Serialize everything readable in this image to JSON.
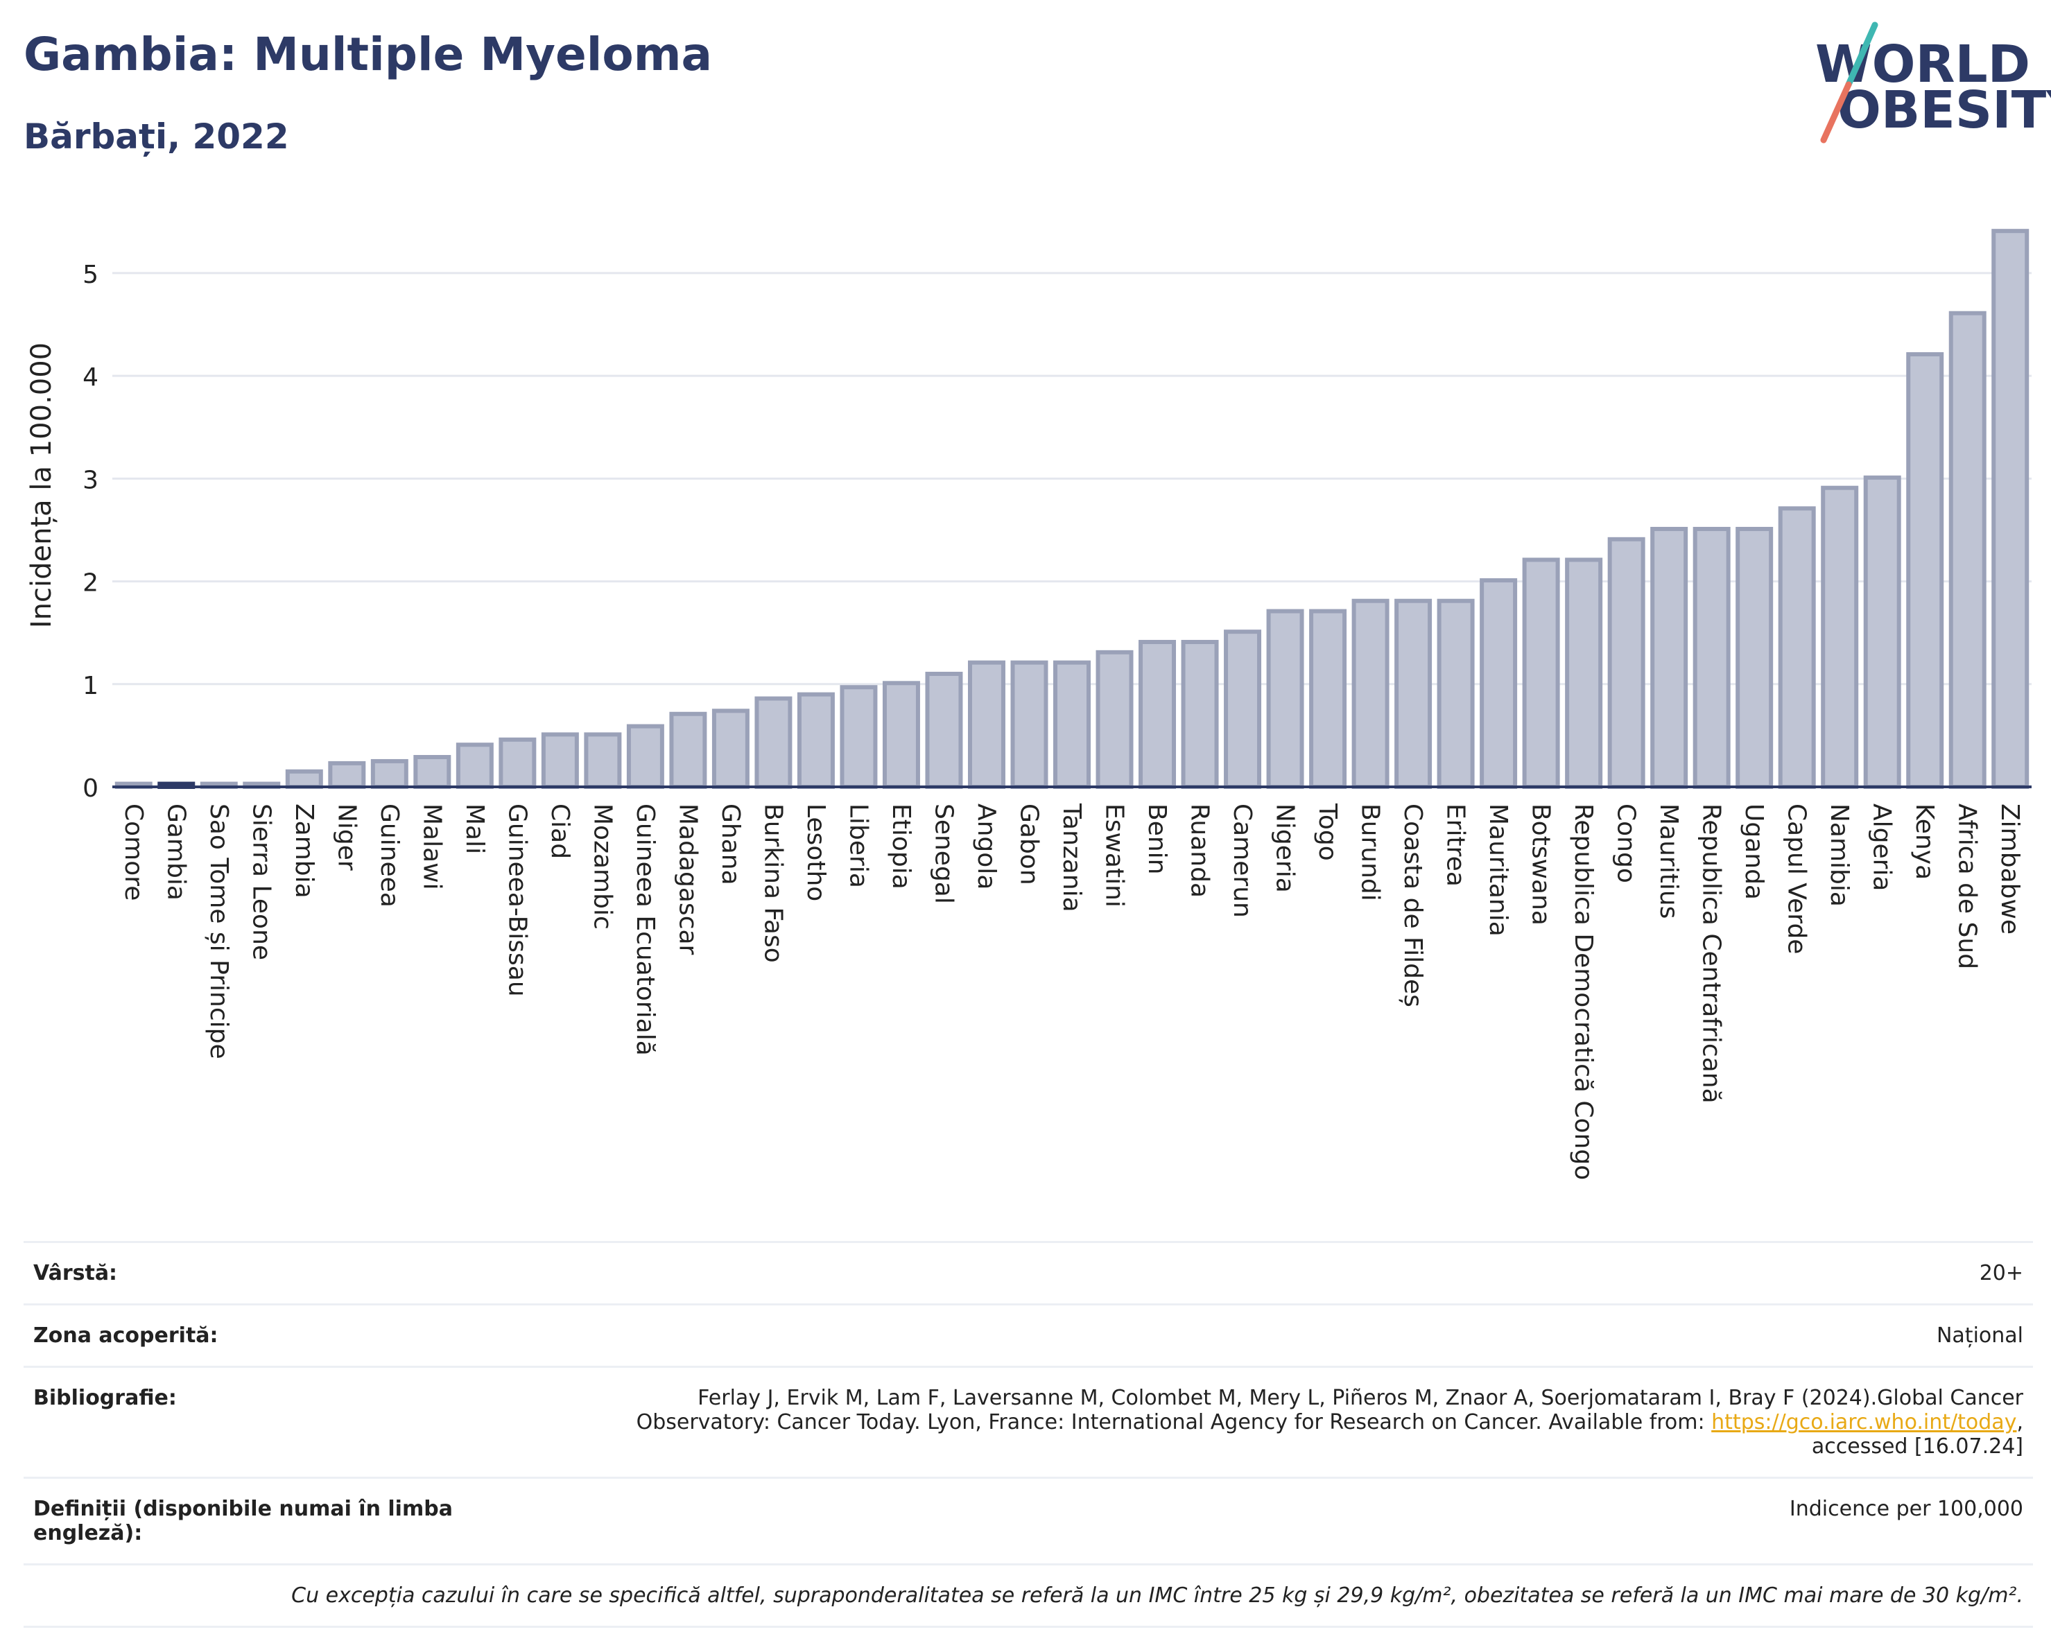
{
  "header": {
    "title": "Gambia: Multiple Myeloma",
    "subtitle": "Bărbați, 2022"
  },
  "logo": {
    "line1": "WORLD",
    "line2": "OBESITY",
    "accent_teal": "#3fb7b2",
    "accent_coral": "#e8735f"
  },
  "colors": {
    "bar": "#bfc4d4",
    "bar_border": "#9aa1b8",
    "highlight": "#2d3a66",
    "axis": "#2d3a66",
    "grid": "#e4e7ee"
  },
  "chart_data": {
    "type": "bar",
    "ylabel": "Incidența la 100.000",
    "ylim": [
      0,
      5.6
    ],
    "yticks": [
      0,
      1,
      2,
      3,
      4,
      5
    ],
    "highlight": "Gambia",
    "categories": [
      "Comore",
      "Gambia",
      "Sao Tome și Principe",
      "Sierra Leone",
      "Zambia",
      "Niger",
      "Guineea",
      "Malawi",
      "Mali",
      "Guineea-Bissau",
      "Ciad",
      "Mozambic",
      "Guineea Ecuatorială",
      "Madagascar",
      "Ghana",
      "Burkina Faso",
      "Lesotho",
      "Liberia",
      "Etiopia",
      "Senegal",
      "Angola",
      "Gabon",
      "Tanzania",
      "Eswatini",
      "Benin",
      "Ruanda",
      "Camerun",
      "Nigeria",
      "Togo",
      "Burundi",
      "Coasta de Fildeș",
      "Eritrea",
      "Mauritania",
      "Botswana",
      "Republica Democratică Congo",
      "Congo",
      "Mauritius",
      "Republica Centrafricană",
      "Uganda",
      "Capul Verde",
      "Namibia",
      "Algeria",
      "Kenya",
      "Africa de Sud",
      "Zimbabwe"
    ],
    "values": [
      0.03,
      0.03,
      0.03,
      0.03,
      0.15,
      0.23,
      0.25,
      0.29,
      0.41,
      0.46,
      0.51,
      0.51,
      0.59,
      0.71,
      0.74,
      0.86,
      0.9,
      0.97,
      1.01,
      1.1,
      1.21,
      1.21,
      1.21,
      1.31,
      1.41,
      1.41,
      1.51,
      1.71,
      1.71,
      1.81,
      1.81,
      1.81,
      2.01,
      2.21,
      2.21,
      2.41,
      2.51,
      2.51,
      2.51,
      2.71,
      2.91,
      3.01,
      4.21,
      4.61,
      5.41
    ]
  },
  "info": {
    "age_label": "Vârstă:",
    "age_value": "20+",
    "area_label": "Zona acoperită:",
    "area_value": "Național",
    "biblio_label": "Bibliografie:",
    "biblio_line1": "Ferlay J, Ervik M, Lam F, Laversanne M, Colombet M, Mery L, Piñeros M, Znaor A, Soerjomataram I, Bray F (2024).Global Cancer",
    "biblio_line2": "Observatory: Cancer Today. Lyon, France: International Agency for Research on Cancer. Available from: ",
    "biblio_link": "https://gco.iarc.who.int/today",
    "biblio_line3": "accessed [16.07.24]",
    "def_label": "Definiții (disponibile numai în limba engleză):",
    "def_value": "Indicence per 100,000",
    "note": "Cu excepția cazului în care se specifică altfel, supraponderalitatea se referă la un IMC între 25 kg și 29,9 kg/m², obezitatea se referă la un IMC mai mare de 30 kg/m²."
  }
}
